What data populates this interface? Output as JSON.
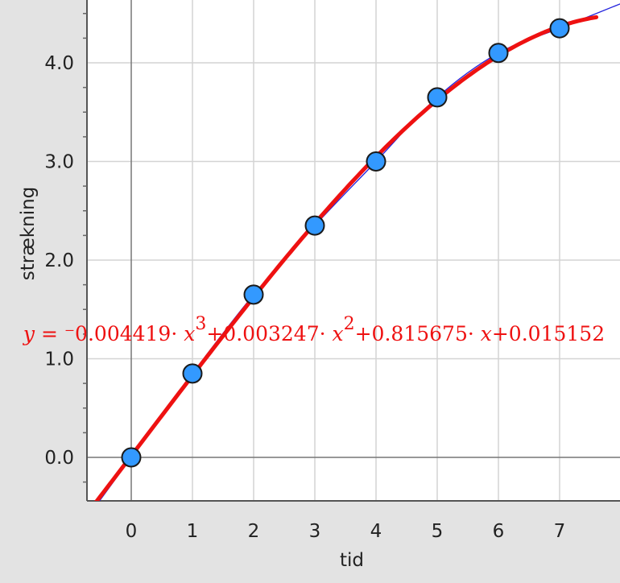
{
  "chart_data": {
    "type": "scatter",
    "title": "",
    "xlabel": "tid",
    "ylabel": "strækning",
    "xlim": [
      -0.6,
      7.6
    ],
    "ylim": [
      -0.45,
      4.6
    ],
    "x_ticks": [
      0,
      1,
      2,
      3,
      4,
      5,
      6,
      7
    ],
    "x_tick_labels": [
      "0",
      "1",
      "2",
      "3",
      "4",
      "5",
      "6",
      "7"
    ],
    "y_ticks": [
      0,
      1,
      2,
      3,
      4
    ],
    "y_tick_labels": [
      "0.0",
      "1.0",
      "2.0",
      "3.0",
      "4.0"
    ],
    "grid": true,
    "series": [
      {
        "type": "scatter",
        "x": [
          0,
          1,
          2,
          3,
          4,
          5,
          6,
          7
        ],
        "y": [
          0.0,
          0.85,
          1.65,
          2.35,
          3.0,
          3.65,
          4.1,
          4.35
        ]
      }
    ],
    "fits": [
      {
        "kind": "polynomial",
        "coefficients": [
          -0.004419,
          0.003247,
          0.815675,
          0.015152
        ],
        "label": {
          "y_eq": "y = ",
          "a": "⁻0.004419· ",
          "x1": "x",
          "exp3": "3",
          "b": "+0.003247· ",
          "x2": "x",
          "exp2": "2",
          "c": "+0.815675· ",
          "x3": "x",
          "d": "+0.015152"
        }
      },
      {
        "kind": "smooth"
      }
    ],
    "colors": {
      "points": "#3399ff",
      "point_outline": "#1a1a1a",
      "fit_curve": "#ee1111",
      "smooth_curve": "#2222dd",
      "grid": "#d4d4d4",
      "axis": "#555555",
      "plot_bg": "#ffffff",
      "page_bg": "#e3e3e3"
    }
  }
}
